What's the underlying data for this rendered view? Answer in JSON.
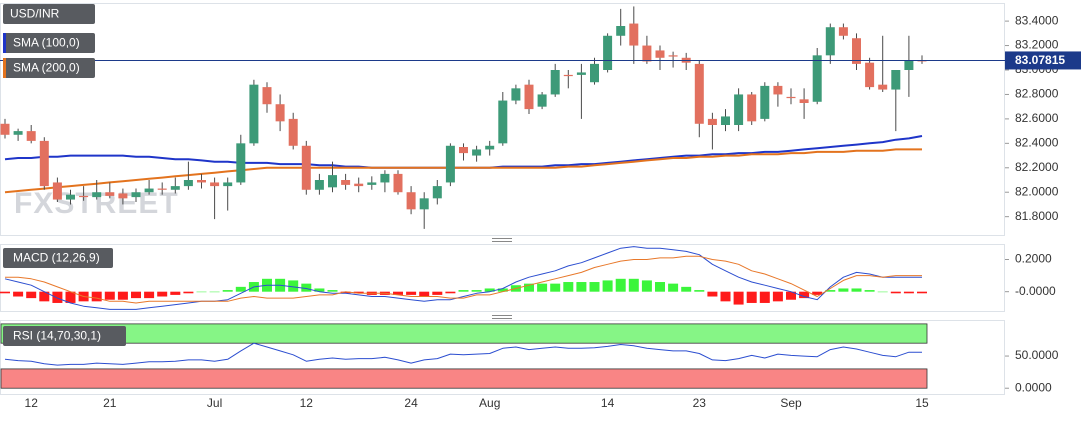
{
  "chart_data": [
    {
      "type": "candlestick",
      "title": "USD/INR",
      "watermark": "FXSTREET",
      "categories": [
        null,
        null,
        "12",
        null,
        null,
        null,
        null,
        null,
        "21",
        null,
        null,
        null,
        null,
        null,
        null,
        null,
        "Jul",
        null,
        null,
        null,
        null,
        null,
        null,
        "12",
        null,
        null,
        null,
        null,
        null,
        null,
        null,
        "24",
        null,
        null,
        null,
        null,
        null,
        "Aug",
        null,
        null,
        null,
        null,
        null,
        null,
        null,
        null,
        "14",
        null,
        null,
        null,
        null,
        null,
        null,
        "23",
        null,
        null,
        null,
        null,
        null,
        null,
        "Sep",
        null,
        null,
        null,
        null,
        null,
        null,
        null,
        null,
        null,
        "15"
      ],
      "open": [
        82.56,
        82.47,
        82.5,
        82.42,
        82.08,
        81.94,
        81.97,
        81.96,
        82.0,
        81.99,
        81.96,
        82.0,
        82.03,
        82.02,
        82.05,
        82.1,
        82.08,
        82.05,
        82.08,
        82.4,
        82.86,
        82.72,
        82.6,
        82.38,
        82.02,
        82.04,
        82.1,
        82.07,
        82.06,
        82.08,
        82.15,
        82.0,
        81.86,
        81.95,
        82.08,
        82.37,
        82.3,
        82.35,
        82.4,
        82.75,
        82.88,
        82.7,
        82.8,
        82.96,
        82.96,
        82.9,
        83.0,
        83.28,
        83.38,
        83.2,
        83.16,
        83.12,
        83.1,
        83.05,
        82.6,
        82.55,
        82.55,
        82.8,
        82.6,
        82.87,
        82.78,
        82.76,
        82.74,
        83.12,
        83.35,
        83.26,
        83.06,
        82.88,
        82.84,
        83.0,
        83.08
      ],
      "high": [
        82.6,
        82.52,
        82.55,
        82.45,
        82.12,
        82.02,
        82.05,
        82.1,
        82.08,
        82.03,
        82.03,
        82.1,
        82.08,
        82.12,
        82.25,
        82.15,
        82.12,
        82.12,
        82.47,
        82.92,
        82.9,
        82.8,
        82.65,
        82.42,
        82.15,
        82.25,
        82.15,
        82.12,
        82.13,
        82.18,
        82.18,
        82.05,
        82.0,
        82.1,
        82.4,
        82.4,
        82.38,
        82.42,
        82.82,
        82.88,
        82.92,
        82.82,
        83.05,
        83.0,
        83.05,
        83.1,
        83.3,
        83.5,
        83.52,
        83.28,
        83.2,
        83.15,
        83.14,
        83.08,
        82.65,
        82.68,
        82.85,
        82.82,
        82.9,
        82.9,
        82.85,
        82.85,
        83.18,
        83.38,
        83.38,
        83.3,
        83.1,
        83.28,
        83.0,
        83.28,
        83.12
      ],
      "low": [
        82.44,
        82.42,
        82.4,
        82.02,
        81.92,
        81.9,
        81.93,
        81.94,
        81.95,
        81.9,
        81.92,
        81.98,
        81.98,
        81.99,
        82.02,
        82.03,
        81.78,
        81.85,
        82.06,
        82.38,
        82.65,
        82.5,
        82.35,
        81.98,
        81.98,
        82.0,
        82.02,
        82.0,
        82.02,
        82.0,
        81.98,
        81.82,
        81.7,
        81.9,
        82.05,
        82.26,
        82.25,
        82.3,
        82.38,
        82.72,
        82.64,
        82.68,
        82.78,
        82.85,
        82.6,
        82.88,
        82.98,
        83.2,
        83.05,
        83.05,
        83.0,
        83.02,
        83.0,
        82.45,
        82.35,
        82.5,
        82.5,
        82.55,
        82.58,
        82.7,
        82.72,
        82.6,
        82.72,
        83.05,
        83.25,
        83.0,
        82.84,
        82.82,
        82.5,
        82.78,
        83.05
      ],
      "close": [
        82.47,
        82.5,
        82.42,
        82.05,
        81.94,
        81.98,
        81.96,
        82.0,
        81.97,
        81.95,
        82.0,
        82.03,
        82.02,
        82.05,
        82.1,
        82.08,
        82.05,
        82.08,
        82.4,
        82.88,
        82.72,
        82.58,
        82.38,
        82.02,
        82.1,
        82.14,
        82.06,
        82.05,
        82.08,
        82.15,
        82.0,
        81.86,
        81.95,
        82.05,
        82.38,
        82.32,
        82.35,
        82.38,
        82.75,
        82.85,
        82.68,
        82.8,
        83.0,
        82.95,
        82.98,
        83.05,
        83.28,
        83.36,
        83.2,
        83.07,
        83.1,
        83.11,
        83.06,
        82.56,
        82.55,
        82.62,
        82.8,
        82.58,
        82.87,
        82.8,
        82.77,
        82.73,
        83.12,
        83.35,
        83.28,
        83.05,
        82.86,
        82.84,
        83.0,
        83.08,
        83.07
      ],
      "up_color": "#3d9a78",
      "down_color": "#e2705f",
      "ylim": [
        81.65,
        83.54
      ],
      "yticks": [
        {
          "value": 81.8,
          "label": "81.8000"
        },
        {
          "value": 82.0,
          "label": "82.0000"
        },
        {
          "value": 82.2,
          "label": "82.2000"
        },
        {
          "value": 82.4,
          "label": "82.4000"
        },
        {
          "value": 82.6,
          "label": "82.6000"
        },
        {
          "value": 82.8,
          "label": "82.8000"
        },
        {
          "value": 83.0,
          "label": "83.0000"
        },
        {
          "value": 83.2,
          "label": "83.2000"
        },
        {
          "value": 83.4,
          "label": "83.4000"
        }
      ],
      "last_price": 83.07815,
      "last_price_color": "#1c3a8a",
      "series": [
        {
          "name": "SMA (100,0)",
          "color": "#1f35c9",
          "values": [
            82.27,
            82.28,
            82.28,
            82.29,
            82.29,
            82.3,
            82.3,
            82.3,
            82.3,
            82.3,
            82.29,
            82.29,
            82.28,
            82.27,
            82.27,
            82.26,
            82.25,
            82.25,
            82.24,
            82.24,
            82.24,
            82.23,
            82.23,
            82.23,
            82.22,
            82.22,
            82.21,
            82.21,
            82.2,
            82.2,
            82.2,
            82.2,
            82.2,
            82.2,
            82.2,
            82.2,
            82.2,
            82.2,
            82.21,
            82.21,
            82.21,
            82.21,
            82.22,
            82.22,
            82.23,
            82.23,
            82.24,
            82.25,
            82.26,
            82.27,
            82.28,
            82.29,
            82.3,
            82.3,
            82.31,
            82.31,
            82.32,
            82.32,
            82.33,
            82.33,
            82.34,
            82.35,
            82.36,
            82.37,
            82.38,
            82.39,
            82.4,
            82.41,
            82.43,
            82.44,
            82.46
          ]
        },
        {
          "name": "SMA (200,0)",
          "color": "#e3731e",
          "values": [
            82.0,
            82.01,
            82.02,
            82.03,
            82.04,
            82.05,
            82.06,
            82.07,
            82.08,
            82.09,
            82.1,
            82.11,
            82.12,
            82.13,
            82.14,
            82.15,
            82.16,
            82.17,
            82.18,
            82.19,
            82.2,
            82.2,
            82.2,
            82.2,
            82.2,
            82.2,
            82.2,
            82.2,
            82.2,
            82.2,
            82.2,
            82.2,
            82.2,
            82.2,
            82.2,
            82.2,
            82.2,
            82.2,
            82.2,
            82.2,
            82.2,
            82.2,
            82.2,
            82.21,
            82.21,
            82.22,
            82.23,
            82.24,
            82.25,
            82.26,
            82.27,
            82.28,
            82.28,
            82.29,
            82.29,
            82.3,
            82.3,
            82.31,
            82.31,
            82.31,
            82.32,
            82.32,
            82.33,
            82.33,
            82.33,
            82.34,
            82.34,
            82.34,
            82.35,
            82.35,
            82.35
          ]
        }
      ]
    },
    {
      "type": "macd",
      "title": "MACD (12,26,9)",
      "histogram": {
        "up_color": "#3bf53b",
        "down_color": "#ff1a1a",
        "values": [
          -0.01,
          -0.03,
          -0.04,
          -0.06,
          -0.07,
          -0.07,
          -0.06,
          -0.06,
          -0.05,
          -0.05,
          -0.04,
          -0.04,
          -0.03,
          -0.02,
          -0.01,
          0,
          0,
          0.01,
          0.03,
          0.06,
          0.08,
          0.08,
          0.07,
          0.05,
          0.02,
          0.01,
          -0.01,
          -0.01,
          -0.02,
          -0.02,
          -0.02,
          -0.02,
          -0.03,
          -0.02,
          -0.01,
          0.01,
          0.01,
          0.02,
          0.02,
          0.04,
          0.05,
          0.05,
          0.05,
          0.06,
          0.06,
          0.06,
          0.07,
          0.08,
          0.08,
          0.07,
          0.06,
          0.05,
          0.03,
          0.01,
          -0.03,
          -0.06,
          -0.08,
          -0.07,
          -0.07,
          -0.06,
          -0.05,
          -0.04,
          -0.02,
          0.01,
          0.02,
          0.02,
          0.01,
          0,
          -0.01,
          -0.01,
          -0.01
        ]
      },
      "series": [
        {
          "color": "#2c4ed0",
          "values": [
            0.08,
            0.06,
            0.04,
            0,
            -0.04,
            -0.07,
            -0.09,
            -0.1,
            -0.11,
            -0.11,
            -0.11,
            -0.1,
            -0.09,
            -0.08,
            -0.07,
            -0.06,
            -0.06,
            -0.05,
            -0.01,
            0.03,
            0.04,
            0.04,
            0.03,
            0.02,
            0,
            -0.01,
            -0.01,
            -0.02,
            -0.03,
            -0.03,
            -0.04,
            -0.05,
            -0.06,
            -0.05,
            -0.05,
            -0.03,
            -0.01,
            0,
            0.02,
            0.06,
            0.09,
            0.11,
            0.13,
            0.16,
            0.18,
            0.21,
            0.24,
            0.27,
            0.28,
            0.27,
            0.27,
            0.26,
            0.25,
            0.23,
            0.17,
            0.13,
            0.09,
            0.06,
            0.04,
            0.02,
            0,
            -0.03,
            -0.05,
            0.03,
            0.09,
            0.12,
            0.11,
            0.09,
            0.09,
            0.09,
            0.09
          ]
        },
        {
          "color": "#e8782a",
          "values": [
            0.09,
            0.09,
            0.08,
            0.06,
            0.03,
            0,
            -0.03,
            -0.04,
            -0.06,
            -0.06,
            -0.07,
            -0.06,
            -0.06,
            -0.06,
            -0.06,
            -0.06,
            -0.06,
            -0.06,
            -0.04,
            -0.03,
            -0.04,
            -0.04,
            -0.04,
            -0.03,
            -0.02,
            -0.02,
            0,
            -0.01,
            -0.01,
            -0.01,
            -0.02,
            -0.03,
            -0.03,
            -0.03,
            -0.04,
            -0.04,
            -0.02,
            -0.02,
            0,
            0.02,
            0.04,
            0.06,
            0.08,
            0.1,
            0.12,
            0.15,
            0.17,
            0.19,
            0.2,
            0.2,
            0.21,
            0.21,
            0.22,
            0.22,
            0.2,
            0.19,
            0.17,
            0.13,
            0.11,
            0.08,
            0.05,
            0.01,
            -0.03,
            0.02,
            0.07,
            0.1,
            0.1,
            0.09,
            0.1,
            0.1,
            0.1
          ]
        }
      ],
      "ylim": [
        -0.12,
        0.29
      ],
      "yticks": [
        {
          "value": 0,
          "label": "-0.0000"
        },
        {
          "value": 0.2,
          "label": "0.2000"
        }
      ]
    },
    {
      "type": "rsi",
      "title": "RSI (14,70,30,1)",
      "color": "#2c4ed0",
      "values": [
        45,
        43,
        42,
        38,
        36,
        37,
        37,
        39,
        38,
        37,
        39,
        41,
        41,
        42,
        44,
        44,
        42,
        45,
        58,
        70,
        64,
        58,
        52,
        42,
        45,
        47,
        45,
        46,
        46,
        48,
        44,
        39,
        44,
        46,
        53,
        52,
        53,
        54,
        62,
        64,
        60,
        62,
        64,
        62,
        62,
        63,
        65,
        68,
        66,
        62,
        60,
        58,
        58,
        54,
        44,
        43,
        46,
        51,
        47,
        53,
        51,
        50,
        49,
        60,
        64,
        61,
        56,
        51,
        49,
        56,
        56
      ],
      "overbought": {
        "range": [
          70,
          100
        ],
        "color": "#86f586"
      },
      "oversold": {
        "range": [
          0,
          30
        ],
        "color": "#f98585"
      },
      "ylim": [
        -9,
        104.5
      ],
      "yticks": [
        {
          "value": 0,
          "label": "0.0000"
        },
        {
          "value": 50,
          "label": "50.0000"
        }
      ]
    }
  ]
}
